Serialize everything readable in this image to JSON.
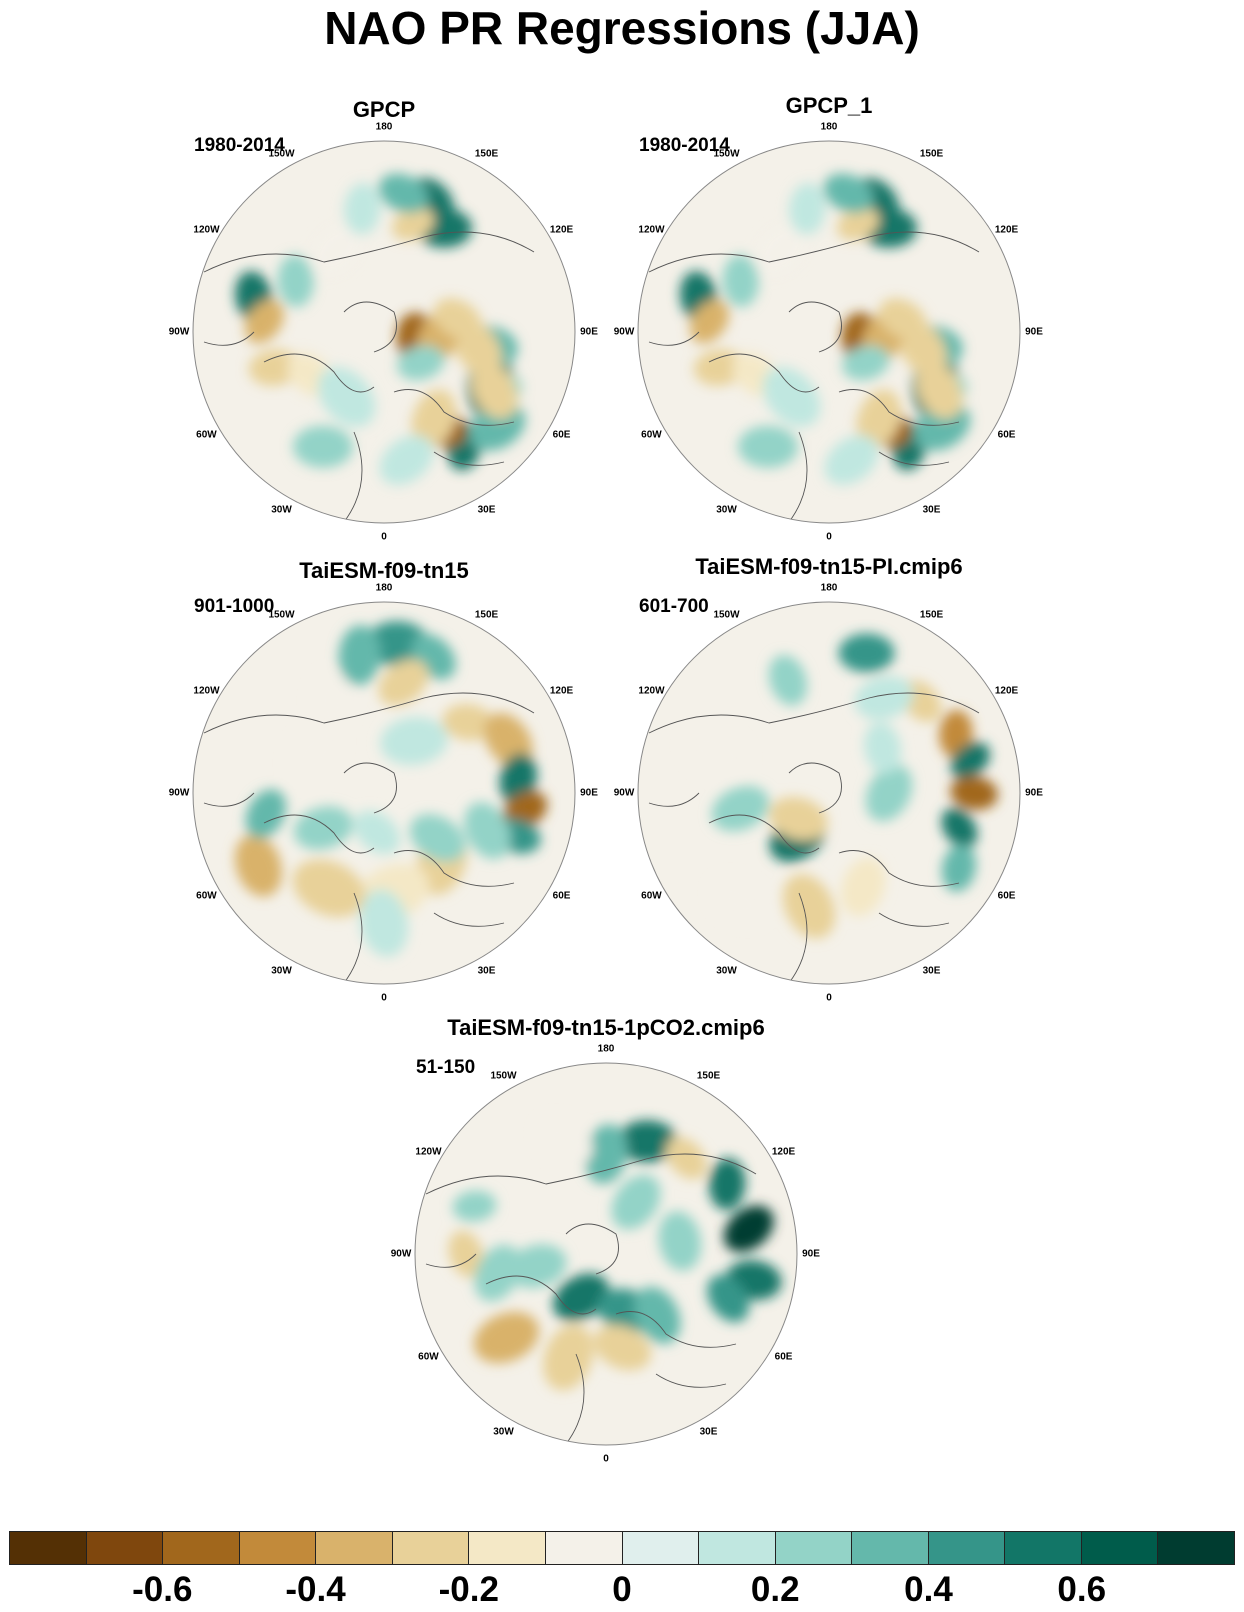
{
  "title": "NAO PR Regressions (JJA)",
  "longitude_labels": [
    "180",
    "150E",
    "120E",
    "90E",
    "60E",
    "30E",
    "0",
    "30W",
    "60W",
    "90W",
    "120W",
    "150W"
  ],
  "panels": [
    {
      "id": "gpcp",
      "title": "GPCP",
      "period": "1980-2014",
      "features": [
        [
          120,
          150,
          0.6,
          0.45
        ],
        [
          140,
          160,
          0.5,
          0.4
        ],
        [
          120,
          63,
          0.6,
          0.6
        ],
        [
          132,
          62,
          0.2,
          0.35
        ],
        [
          105,
          82,
          0.3,
          0.5
        ],
        [
          95,
          80,
          -0.3,
          0.5
        ],
        [
          140,
          35,
          0.5,
          0.35
        ],
        [
          148,
          50,
          0.3,
          0.5
        ],
        [
          110,
          30,
          -0.6,
          0.45
        ],
        [
          125,
          62,
          -0.3,
          0.5
        ],
        [
          100,
          30,
          -0.3,
          0.5
        ],
        [
          112,
          165,
          -0.3,
          0.3
        ],
        [
          140,
          172,
          0.3,
          0.4
        ],
        [
          38,
          72,
          -0.6,
          0.55
        ],
        [
          55,
          85,
          -0.4,
          0.45
        ],
        [
          48,
          50,
          0.2,
          0.35
        ],
        [
          75,
          100,
          -0.3,
          0.4
        ],
        [
          135,
          -105,
          0.5,
          0.4
        ],
        [
          120,
          -95,
          -0.4,
          0.35
        ],
        [
          115,
          -72,
          -0.3,
          0.4
        ],
        [
          85,
          -60,
          -0.2,
          0.4
        ],
        [
          102,
          -120,
          0.2,
          0.4
        ],
        [
          95,
          -150,
          -0.1,
          0.5
        ],
        [
          130,
          -28,
          0.2,
          0.5
        ],
        [
          75,
          -30,
          0.1,
          0.6
        ],
        [
          125,
          -170,
          0.1,
          0.4
        ],
        [
          130,
          10,
          0.1,
          0.5
        ]
      ]
    },
    {
      "id": "gpcp1",
      "title": "GPCP_1",
      "period": "1980-2014",
      "features": [
        [
          120,
          150,
          0.6,
          0.45
        ],
        [
          140,
          160,
          0.5,
          0.4
        ],
        [
          120,
          63,
          0.6,
          0.6
        ],
        [
          132,
          62,
          0.2,
          0.35
        ],
        [
          105,
          82,
          0.3,
          0.5
        ],
        [
          95,
          80,
          -0.3,
          0.5
        ],
        [
          140,
          35,
          0.5,
          0.35
        ],
        [
          148,
          50,
          0.3,
          0.5
        ],
        [
          110,
          30,
          -0.6,
          0.45
        ],
        [
          125,
          62,
          -0.3,
          0.5
        ],
        [
          100,
          30,
          -0.3,
          0.5
        ],
        [
          112,
          165,
          -0.3,
          0.3
        ],
        [
          140,
          172,
          0.3,
          0.4
        ],
        [
          38,
          72,
          -0.6,
          0.55
        ],
        [
          55,
          85,
          -0.4,
          0.45
        ],
        [
          48,
          50,
          0.2,
          0.35
        ],
        [
          75,
          100,
          -0.3,
          0.4
        ],
        [
          135,
          -105,
          0.5,
          0.4
        ],
        [
          120,
          -95,
          -0.4,
          0.35
        ],
        [
          115,
          -72,
          -0.3,
          0.4
        ],
        [
          85,
          -60,
          -0.2,
          0.4
        ],
        [
          102,
          -120,
          0.2,
          0.4
        ],
        [
          95,
          -150,
          -0.1,
          0.5
        ],
        [
          130,
          -28,
          0.2,
          0.5
        ],
        [
          75,
          -30,
          0.1,
          0.6
        ],
        [
          125,
          -170,
          0.1,
          0.4
        ],
        [
          130,
          10,
          0.1,
          0.5
        ]
      ]
    },
    {
      "id": "taiesm",
      "title": "TaiESM-f09-tn15",
      "period": "901-1000",
      "features": [
        [
          150,
          175,
          0.4,
          0.55
        ],
        [
          145,
          160,
          0.3,
          0.4
        ],
        [
          140,
          -170,
          0.3,
          0.5
        ],
        [
          112,
          170,
          -0.3,
          0.45
        ],
        [
          110,
          130,
          -0.3,
          0.4
        ],
        [
          135,
          113,
          -0.4,
          0.5
        ],
        [
          135,
          96,
          0.5,
          0.4
        ],
        [
          142,
          83,
          -0.6,
          0.35
        ],
        [
          140,
          72,
          0.4,
          0.35
        ],
        [
          110,
          70,
          0.2,
          0.5
        ],
        [
          90,
          40,
          -0.3,
          0.6
        ],
        [
          100,
          5,
          -0.2,
          0.7
        ],
        [
          110,
          -30,
          -0.3,
          0.7
        ],
        [
          145,
          -60,
          -0.4,
          0.55
        ],
        [
          120,
          -80,
          0.3,
          0.4
        ],
        [
          70,
          -60,
          0.2,
          0.5
        ],
        [
          70,
          50,
          0.2,
          0.5
        ],
        [
          130,
          0,
          0.1,
          0.6
        ],
        [
          80,
          -120,
          -0.1,
          0.6
        ],
        [
          60,
          150,
          0.1,
          0.6
        ],
        [
          40,
          -10,
          0.1,
          0.4
        ],
        [
          105,
          -150,
          -0.1,
          0.5
        ]
      ]
    },
    {
      "id": "taiesm_pi",
      "title": "TaiESM-f09-tn15-PI.cmip6",
      "period": "601-700",
      "features": [
        [
          145,
          165,
          0.4,
          0.45
        ],
        [
          130,
          135,
          -0.3,
          0.35
        ],
        [
          140,
          115,
          -0.5,
          0.35
        ],
        [
          145,
          103,
          0.5,
          0.3
        ],
        [
          145,
          90,
          -0.6,
          0.35
        ],
        [
          135,
          75,
          0.6,
          0.3
        ],
        [
          150,
          60,
          0.3,
          0.35
        ],
        [
          55,
          -35,
          0.5,
          0.5
        ],
        [
          40,
          -50,
          -0.3,
          0.5
        ],
        [
          115,
          -10,
          -0.3,
          0.6
        ],
        [
          100,
          20,
          -0.2,
          0.5
        ],
        [
          90,
          -80,
          0.2,
          0.5
        ],
        [
          120,
          -110,
          -0.1,
          0.6
        ],
        [
          120,
          -160,
          0.2,
          0.4
        ],
        [
          60,
          90,
          0.2,
          0.5
        ],
        [
          110,
          150,
          0.1,
          0.5
        ],
        [
          140,
          -40,
          -0.1,
          0.5
        ],
        [
          70,
          130,
          0.1,
          0.4
        ]
      ]
    },
    {
      "id": "taiesm_1pco2",
      "title": "TaiESM-f09-tn15-1pCO2.cmip6",
      "period": "51-150",
      "features": [
        [
          120,
          160,
          0.5,
          0.5
        ],
        [
          125,
          140,
          -0.3,
          0.35
        ],
        [
          140,
          120,
          0.5,
          0.4
        ],
        [
          145,
          100,
          0.7,
          0.45
        ],
        [
          150,
          80,
          0.6,
          0.45
        ],
        [
          130,
          70,
          0.4,
          0.4
        ],
        [
          100,
          180,
          0.3,
          0.5
        ],
        [
          50,
          -30,
          0.5,
          0.5
        ],
        [
          60,
          20,
          0.4,
          0.5
        ],
        [
          80,
          40,
          0.3,
          0.5
        ],
        [
          110,
          -20,
          -0.3,
          0.6
        ],
        [
          130,
          -50,
          -0.4,
          0.6
        ],
        [
          95,
          10,
          -0.3,
          0.5
        ],
        [
          140,
          -90,
          -0.3,
          0.35
        ],
        [
          110,
          -80,
          0.2,
          0.5
        ],
        [
          70,
          -80,
          0.2,
          0.5
        ],
        [
          120,
          -160,
          -0.1,
          0.5
        ],
        [
          75,
          100,
          0.2,
          0.5
        ],
        [
          60,
          150,
          0.2,
          0.5
        ],
        [
          140,
          -110,
          0.2,
          0.3
        ]
      ]
    }
  ],
  "colorbar": {
    "min": -0.8,
    "max": 0.8,
    "step": 0.1,
    "colors": [
      "#543005",
      "#7f470d",
      "#a1671c",
      "#c28a3a",
      "#d9b26b",
      "#e8d199",
      "#f4e8c6",
      "#f4f1e9",
      "#e0efed",
      "#c0e7e0",
      "#93d3c7",
      "#64b8ab",
      "#359589",
      "#127667",
      "#005c4b",
      "#003c30"
    ],
    "tick_labels": [
      "-0.6",
      "-0.4",
      "-0.2",
      "0",
      "0.2",
      "0.4",
      "0.6"
    ],
    "tick_values": [
      -0.6,
      -0.4,
      -0.2,
      0,
      0.2,
      0.4,
      0.6
    ]
  }
}
